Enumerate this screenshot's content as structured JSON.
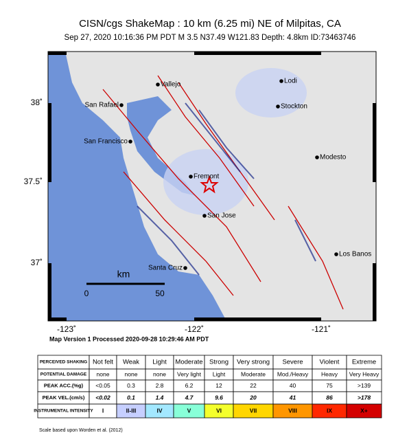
{
  "header": {
    "title": "CISN/cgs ShakeMap : 10 km (6.25 mi) NE of Milpitas, CA",
    "subtitle": "Sep 27, 2020 10:16:36 PM PDT   M 3.5   N37.49 W121.83   Depth: 4.8km   ID:73463746"
  },
  "map": {
    "cities": [
      "Vallejo",
      "Lodi",
      "San Rafael",
      "Stockton",
      "San Francisco",
      "Modesto",
      "Fremont",
      "San Jose",
      "Los Banos",
      "Santa Cruz"
    ],
    "lat_labels": [
      "38˚",
      "37.5˚",
      "37˚"
    ],
    "lon_labels": [
      "-123˚",
      "-122˚",
      "-121˚"
    ],
    "scale": {
      "unit": "km",
      "start": "0",
      "end": "50"
    },
    "processed": "Map Version 1 Processed 2020-09-28 10:29:46 AM PDT"
  },
  "table": {
    "row_headers": [
      "PERCEIVED SHAKING",
      "POTENTIAL DAMAGE",
      "PEAK ACC.(%g)",
      "PEAK VEL.(cm/s)",
      "INSTRUMENTAL INTENSITY"
    ],
    "rows": [
      [
        "Not felt",
        "Weak",
        "Light",
        "Moderate",
        "Strong",
        "Very strong",
        "Severe",
        "Violent",
        "Extreme"
      ],
      [
        "none",
        "none",
        "none",
        "Very light",
        "Light",
        "Moderate",
        "Mod./Heavy",
        "Heavy",
        "Very Heavy"
      ],
      [
        "<0.05",
        "0.3",
        "2.8",
        "6.2",
        "12",
        "22",
        "40",
        "75",
        ">139"
      ],
      [
        "<0.02",
        "0.1",
        "1.4",
        "4.7",
        "9.6",
        "20",
        "41",
        "86",
        ">178"
      ],
      [
        "I",
        "II-III",
        "IV",
        "V",
        "VI",
        "VII",
        "VIII",
        "IX",
        "X+"
      ]
    ],
    "intensity_colors": [
      "#ffffff",
      "#c6cfff",
      "#a3e8ff",
      "#88ffd8",
      "#f4ff2c",
      "#ffd600",
      "#ff9600",
      "#ff2800",
      "#d40000"
    ],
    "footer": "Scale based upon Worden et al. (2012)"
  }
}
